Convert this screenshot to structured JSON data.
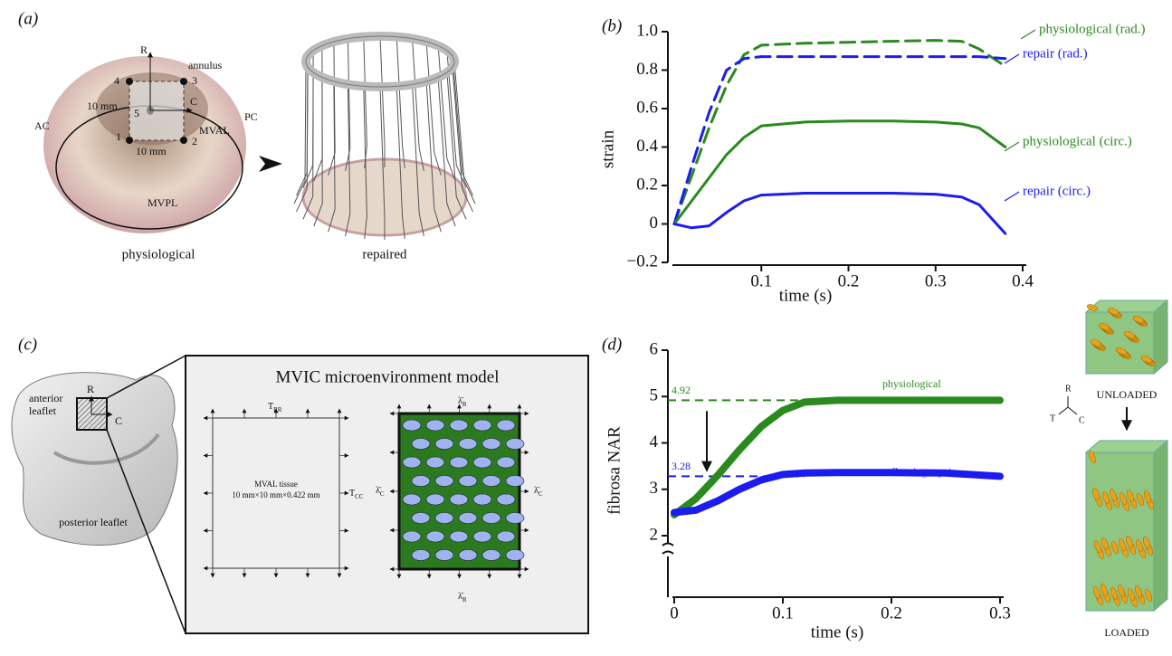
{
  "panel_a": {
    "label": "(a)",
    "texts": [
      "R",
      "annulus",
      "4",
      "3",
      "C",
      "10 mm",
      "5",
      "AC",
      "PC",
      "MVAL",
      "1",
      "2",
      "10 mm",
      "MVPL"
    ],
    "left_caption": "physiological",
    "right_caption": "repaired"
  },
  "panel_c": {
    "label": "(c)",
    "leaflet_texts": [
      "anterior",
      "leaflet",
      "R",
      "C",
      "posterior leaflet"
    ],
    "box_title": "MVIC microenvironment model",
    "t_rr": {
      "main": "T",
      "sub": "RR"
    },
    "t_cc": {
      "main": "T",
      "sub": "CC"
    },
    "tissue": "MVAL tissue",
    "tissue_size": "10 mm×10 mm×0.422 mm",
    "lambda_r": {
      "main": "λ̄",
      "sub": "R"
    },
    "lambda_c": {
      "main": "λ̄",
      "sub": "C"
    }
  },
  "panel_d_extra": {
    "triad": [
      "R",
      "T",
      "C"
    ],
    "unloaded": "UNLOADED",
    "loaded": "LOADED"
  },
  "chart_data": [
    {
      "type": "line",
      "panel_label": "(b)",
      "x_label": "time (s)",
      "y_label": "strain",
      "x": [
        0,
        0.02,
        0.04,
        0.06,
        0.08,
        0.1,
        0.15,
        0.2,
        0.25,
        0.3,
        0.33,
        0.35,
        0.38
      ],
      "series": [
        {
          "name": "physiological (rad.)",
          "color": "#2a8a1e",
          "dashed": true,
          "values": [
            0,
            0.25,
            0.5,
            0.72,
            0.88,
            0.93,
            0.94,
            0.945,
            0.95,
            0.955,
            0.95,
            0.91,
            0.82
          ]
        },
        {
          "name": "repair (rad.)",
          "color": "#1c1cf0",
          "dashed": true,
          "values": [
            0,
            0.3,
            0.58,
            0.8,
            0.86,
            0.87,
            0.87,
            0.87,
            0.87,
            0.87,
            0.87,
            0.87,
            0.86
          ]
        },
        {
          "name": "physiological (circ.)",
          "color": "#2a8a1e",
          "dashed": false,
          "values": [
            0,
            0.12,
            0.24,
            0.36,
            0.45,
            0.51,
            0.53,
            0.535,
            0.535,
            0.53,
            0.52,
            0.5,
            0.4
          ]
        },
        {
          "name": "repair (circ.)",
          "color": "#1c1cf0",
          "dashed": false,
          "values": [
            0,
            -0.02,
            -0.01,
            0.06,
            0.12,
            0.15,
            0.16,
            0.16,
            0.16,
            0.155,
            0.14,
            0.1,
            -0.05
          ]
        }
      ],
      "xlim": [
        0,
        0.4
      ],
      "xticks": [
        0.1,
        0.2,
        0.3,
        0.4
      ],
      "ylim": [
        -0.2,
        1
      ],
      "yticks": [
        {
          "value": -0.2,
          "label": "−0.2"
        },
        0,
        0.2,
        0.4,
        0.6,
        0.8,
        {
          "value": 1,
          "label": "1.0"
        }
      ]
    },
    {
      "type": "line",
      "panel_label": "(d)",
      "x_label": "time (s)",
      "y_label": "fibrosa NAR",
      "x": [
        0,
        0.02,
        0.04,
        0.06,
        0.08,
        0.1,
        0.12,
        0.15,
        0.2,
        0.25,
        0.3
      ],
      "series": [
        {
          "name": "physiological",
          "color": "#2a8a1e",
          "dashed": false,
          "values": [
            2.45,
            2.8,
            3.3,
            3.85,
            4.35,
            4.7,
            4.88,
            4.92,
            4.92,
            4.92,
            4.92
          ]
        },
        {
          "name": "flat-ring repair",
          "color": "#1c1cf0",
          "dashed": false,
          "values": [
            2.5,
            2.55,
            2.75,
            3.0,
            3.2,
            3.32,
            3.35,
            3.36,
            3.36,
            3.35,
            3.28
          ]
        }
      ],
      "reference_lines": [
        {
          "value": 4.92,
          "color": "#2a8a1e"
        },
        {
          "value": 3.28,
          "color": "#1c1cf0"
        }
      ],
      "xlim": [
        0,
        0.3
      ],
      "xticks": [
        0,
        0.1,
        0.2,
        0.3
      ],
      "ylim": [
        2,
        6
      ],
      "yticks": [
        2,
        3,
        4,
        5,
        6
      ]
    }
  ]
}
